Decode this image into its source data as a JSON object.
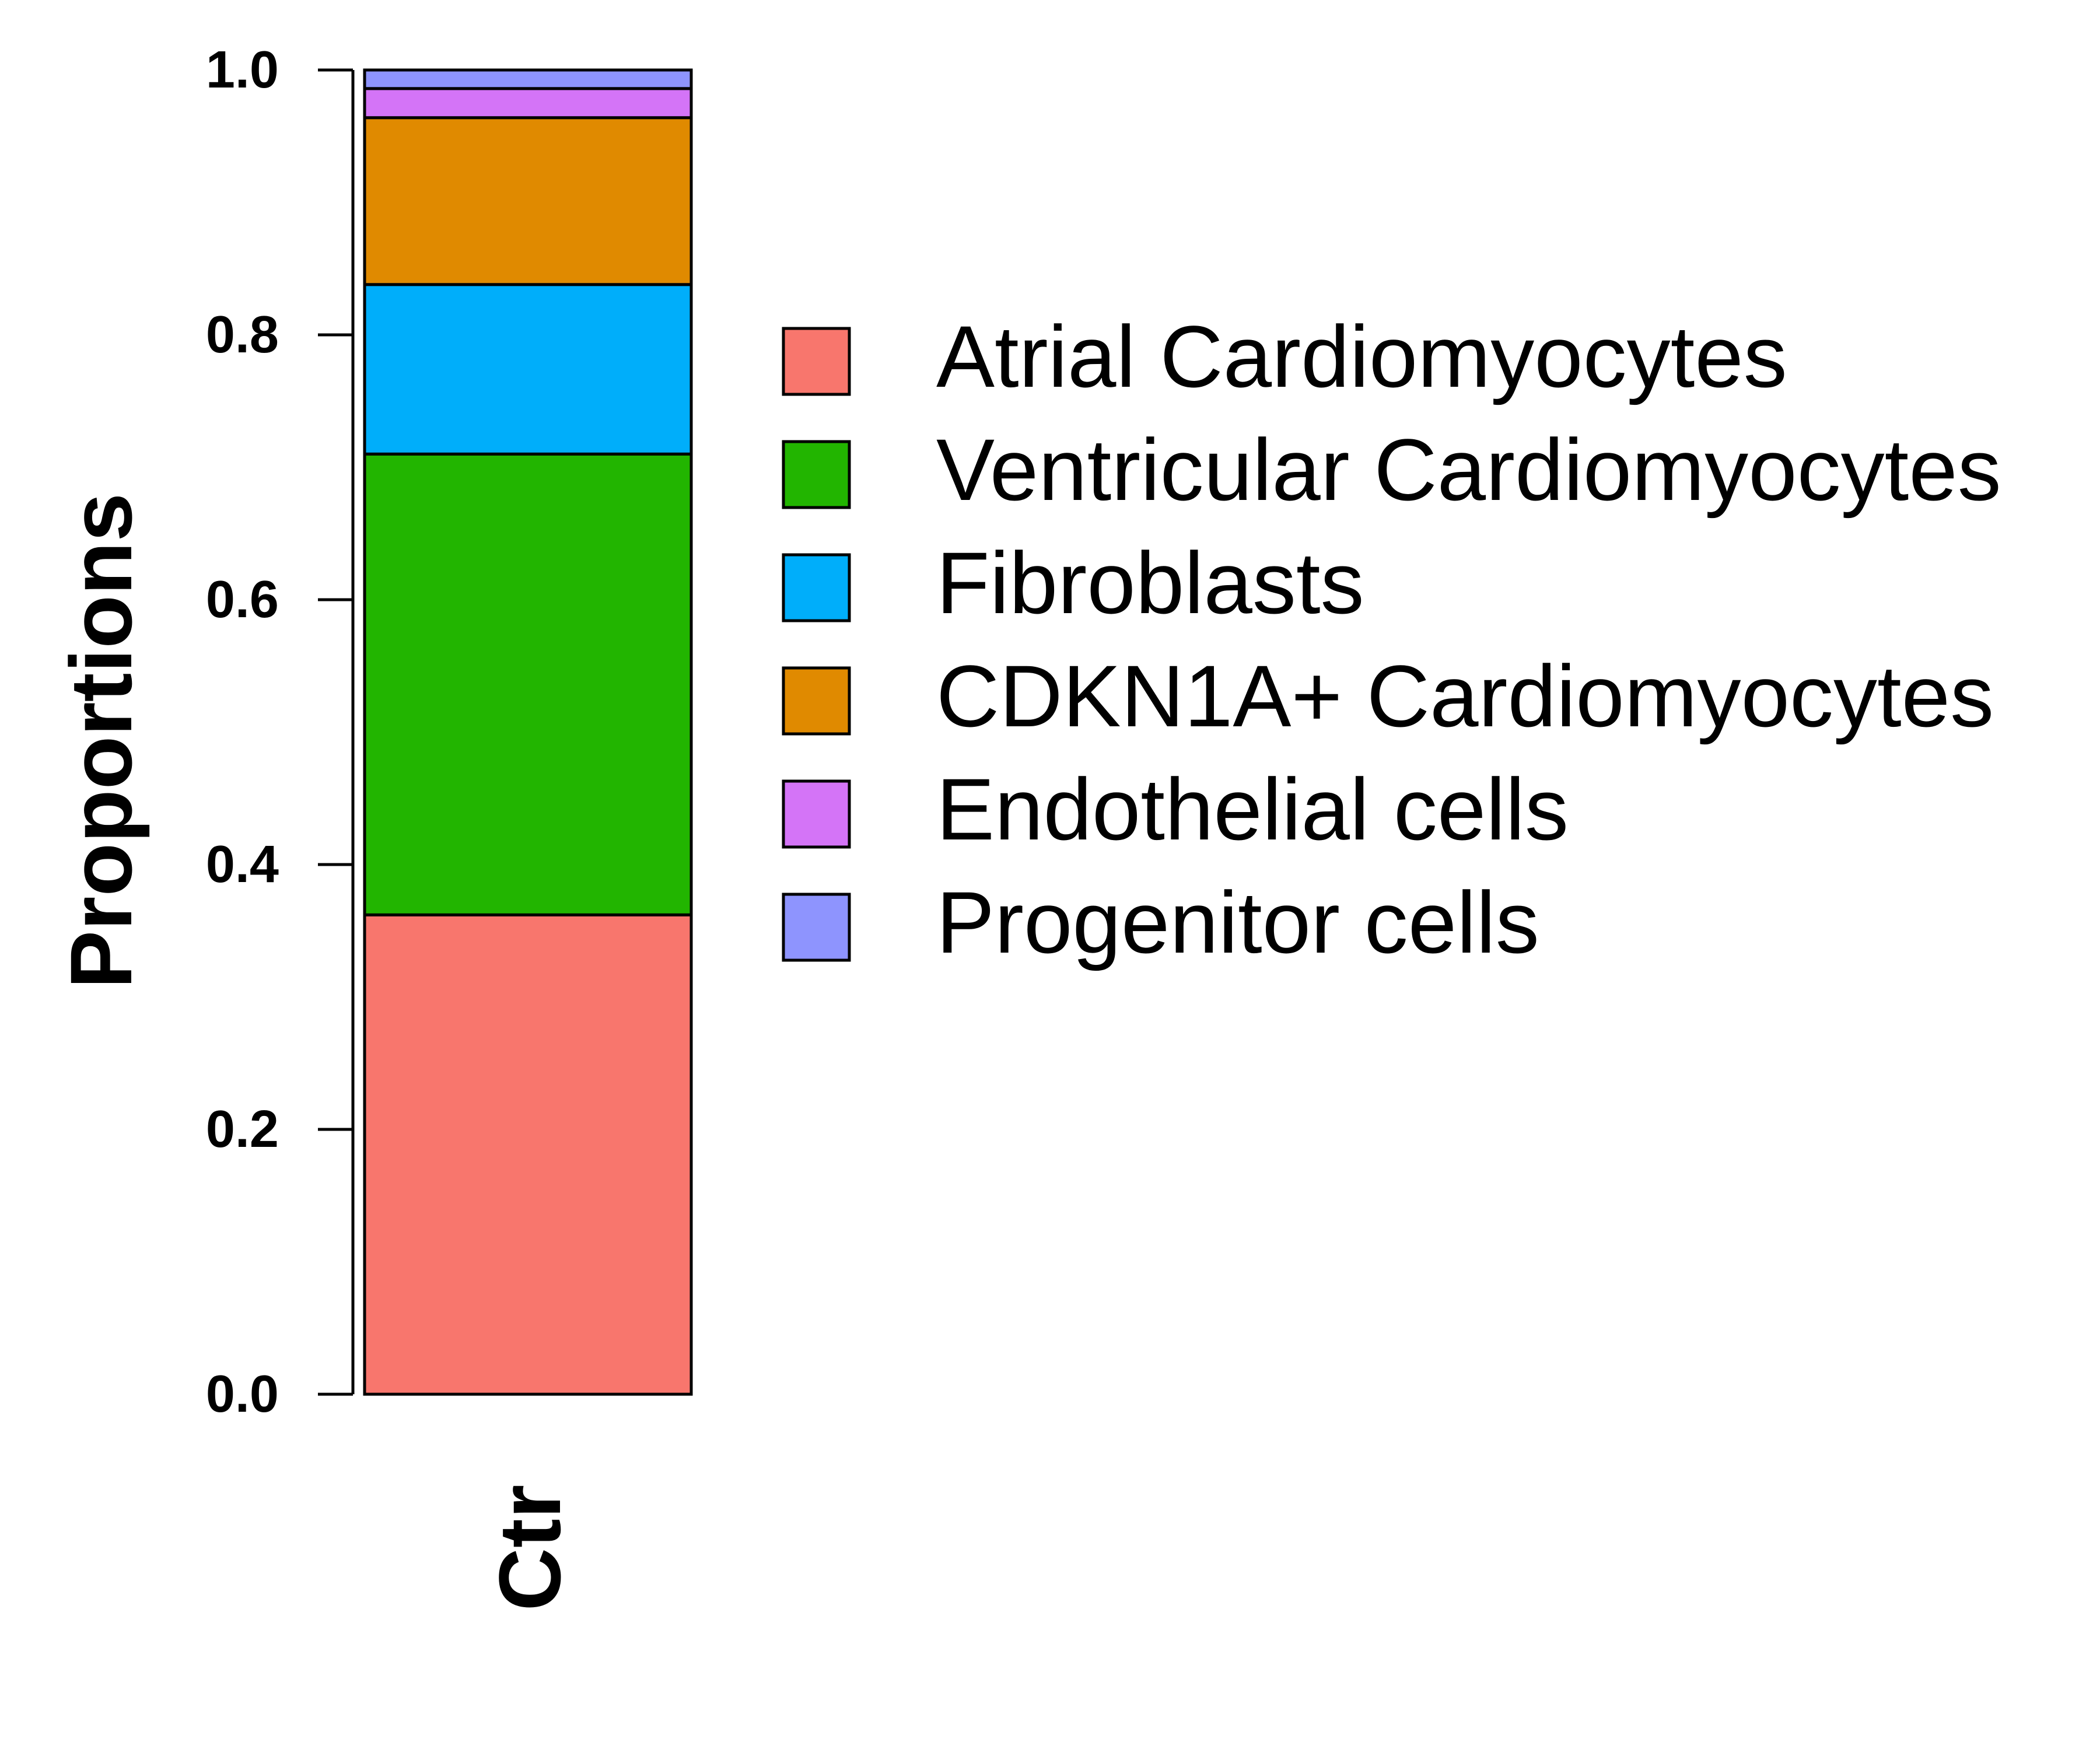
{
  "chart_data": {
    "type": "bar",
    "stacked": true,
    "categories": [
      "Ctr"
    ],
    "ylabel": "Proportions",
    "xlabel": "",
    "ylim": [
      0,
      1
    ],
    "yticks": [
      "0.0",
      "0.2",
      "0.4",
      "0.6",
      "0.8",
      "1.0"
    ],
    "ytick_values": [
      0.0,
      0.2,
      0.4,
      0.6,
      0.8,
      1.0
    ],
    "grid": false,
    "legend_position": "right",
    "series": [
      {
        "name": "Atrial Cardiomyocytes",
        "values": [
          0.362
        ],
        "color": "#F8766D"
      },
      {
        "name": "Ventricular Cardiomyocytes",
        "values": [
          0.348
        ],
        "color": "#22B500"
      },
      {
        "name": "Fibroblasts",
        "values": [
          0.128
        ],
        "color": "#00AEFA"
      },
      {
        "name": "CDKN1A+ Cardiomyocytes",
        "values": [
          0.126
        ],
        "color": "#E08A00"
      },
      {
        "name": "Endothelial cells",
        "values": [
          0.022
        ],
        "color": "#D474F7"
      },
      {
        "name": "Progenitor cells",
        "values": [
          0.014
        ],
        "color": "#8E94FE"
      }
    ]
  }
}
